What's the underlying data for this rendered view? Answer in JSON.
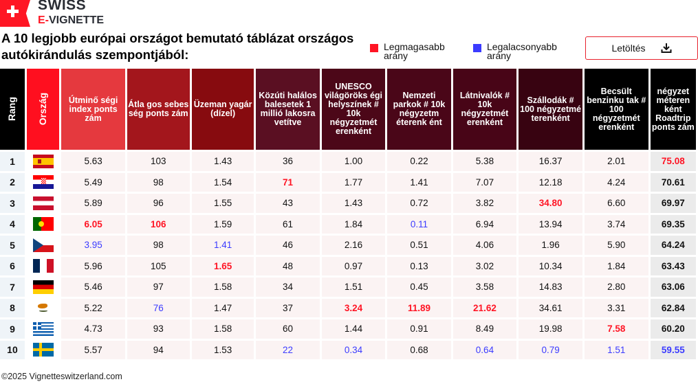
{
  "logo": {
    "line1": "SWISS",
    "line2_prefix": "E-",
    "line2": "VIGNETTE"
  },
  "title": "A 10 legjobb európai országot bemutató táblázat országos autókirándulás szempontjából:",
  "legend": [
    {
      "label": "Legmagasabb arány",
      "color": "#ff1424"
    },
    {
      "label": "Legalacsonyabb arány",
      "color": "#3b3bff"
    }
  ],
  "download": {
    "label": "Letöltés",
    "icon": "download-icon"
  },
  "headers": [
    {
      "label": "Rang",
      "color": "#000000",
      "vertical": true
    },
    {
      "label": "Ország",
      "color": "#ff0f1f",
      "vertical": true
    },
    {
      "label": "Útminő ségi index ponts zám",
      "color": "#e5393e"
    },
    {
      "label": "Átla gos sebes ség ponts zám",
      "color": "#a3161c"
    },
    {
      "label": "Üzeman yagár (dízel)",
      "color": "#870b0f"
    },
    {
      "label": "Közúti halálos balesetek 1 millió lakosra vetítve",
      "color": "#5a0f22"
    },
    {
      "label": "UNESCO világöröks égi helyszínek # 10k négyzetmét erenként",
      "color": "#4c0718"
    },
    {
      "label": "Nemzeti parkok # 10k négyzetm éterenk ént",
      "color": "#4a0618"
    },
    {
      "label": "Látnivalók # 10k négyzetmét erenként",
      "color": "#480517"
    },
    {
      "label": "Szállodák # 100 négyzetmé terenként",
      "color": "#380311"
    },
    {
      "label": "Becsült benzinku tak # 100 négyzetmét erenként",
      "color": "#000000"
    },
    {
      "label": "négyzet méteren ként Roadtrip ponts zám",
      "color": "#000000"
    }
  ],
  "rows": [
    {
      "rank": "1",
      "flag": "spain",
      "cells": [
        [
          "5.63",
          ""
        ],
        [
          "103",
          ""
        ],
        [
          "1.43",
          ""
        ],
        [
          "36",
          ""
        ],
        [
          "1.00",
          ""
        ],
        [
          "0.22",
          ""
        ],
        [
          "5.38",
          ""
        ],
        [
          "16.37",
          ""
        ],
        [
          "2.01",
          ""
        ],
        [
          "75.08",
          "high"
        ]
      ]
    },
    {
      "rank": "2",
      "flag": "croatia",
      "cells": [
        [
          "5.49",
          ""
        ],
        [
          "98",
          ""
        ],
        [
          "1.54",
          ""
        ],
        [
          "71",
          "high"
        ],
        [
          "1.77",
          ""
        ],
        [
          "1.41",
          ""
        ],
        [
          "7.07",
          ""
        ],
        [
          "12.18",
          ""
        ],
        [
          "4.24",
          ""
        ],
        [
          "70.61",
          ""
        ]
      ]
    },
    {
      "rank": "3",
      "flag": "austria",
      "cells": [
        [
          "5.89",
          ""
        ],
        [
          "96",
          ""
        ],
        [
          "1.55",
          ""
        ],
        [
          "43",
          ""
        ],
        [
          "1.43",
          ""
        ],
        [
          "0.72",
          ""
        ],
        [
          "3.82",
          ""
        ],
        [
          "34.80",
          "high"
        ],
        [
          "6.60",
          ""
        ],
        [
          "69.97",
          ""
        ]
      ]
    },
    {
      "rank": "4",
      "flag": "portugal",
      "cells": [
        [
          "6.05",
          "high"
        ],
        [
          "106",
          "high"
        ],
        [
          "1.59",
          ""
        ],
        [
          "61",
          ""
        ],
        [
          "1.84",
          ""
        ],
        [
          "0.11",
          "low"
        ],
        [
          "6.94",
          ""
        ],
        [
          "13.94",
          ""
        ],
        [
          "3.74",
          ""
        ],
        [
          "69.35",
          ""
        ]
      ]
    },
    {
      "rank": "5",
      "flag": "czechia",
      "cells": [
        [
          "3.95",
          "low"
        ],
        [
          "98",
          ""
        ],
        [
          "1.41",
          "low"
        ],
        [
          "46",
          ""
        ],
        [
          "2.16",
          ""
        ],
        [
          "0.51",
          ""
        ],
        [
          "4.06",
          ""
        ],
        [
          "1.96",
          ""
        ],
        [
          "5.90",
          ""
        ],
        [
          "64.24",
          ""
        ]
      ]
    },
    {
      "rank": "6",
      "flag": "france",
      "cells": [
        [
          "5.96",
          ""
        ],
        [
          "105",
          ""
        ],
        [
          "1.65",
          "high"
        ],
        [
          "48",
          ""
        ],
        [
          "0.97",
          ""
        ],
        [
          "0.13",
          ""
        ],
        [
          "3.02",
          ""
        ],
        [
          "10.34",
          ""
        ],
        [
          "1.84",
          ""
        ],
        [
          "63.43",
          ""
        ]
      ]
    },
    {
      "rank": "7",
      "flag": "germany",
      "cells": [
        [
          "5.46",
          ""
        ],
        [
          "97",
          ""
        ],
        [
          "1.58",
          ""
        ],
        [
          "34",
          ""
        ],
        [
          "1.51",
          ""
        ],
        [
          "0.45",
          ""
        ],
        [
          "3.58",
          ""
        ],
        [
          "14.83",
          ""
        ],
        [
          "2.80",
          ""
        ],
        [
          "63.06",
          ""
        ]
      ]
    },
    {
      "rank": "8",
      "flag": "cyprus",
      "cells": [
        [
          "5.22",
          ""
        ],
        [
          "76",
          "low"
        ],
        [
          "1.47",
          ""
        ],
        [
          "37",
          ""
        ],
        [
          "3.24",
          "high"
        ],
        [
          "11.89",
          "high"
        ],
        [
          "21.62",
          "high"
        ],
        [
          "34.61",
          ""
        ],
        [
          "3.31",
          ""
        ],
        [
          "62.84",
          ""
        ]
      ]
    },
    {
      "rank": "9",
      "flag": "greece",
      "cells": [
        [
          "4.73",
          ""
        ],
        [
          "93",
          ""
        ],
        [
          "1.58",
          ""
        ],
        [
          "60",
          ""
        ],
        [
          "1.44",
          ""
        ],
        [
          "0.91",
          ""
        ],
        [
          "8.49",
          ""
        ],
        [
          "19.98",
          ""
        ],
        [
          "7.58",
          "high"
        ],
        [
          "60.20",
          ""
        ]
      ]
    },
    {
      "rank": "10",
      "flag": "sweden",
      "cells": [
        [
          "5.57",
          ""
        ],
        [
          "94",
          ""
        ],
        [
          "1.53",
          ""
        ],
        [
          "22",
          "low"
        ],
        [
          "0.34",
          "low"
        ],
        [
          "0.68",
          ""
        ],
        [
          "0.64",
          "low"
        ],
        [
          "0.79",
          "low"
        ],
        [
          "1.51",
          "low"
        ],
        [
          "59.55",
          "low"
        ]
      ]
    }
  ],
  "footer": "©2025 Vignetteswitzerland.com"
}
